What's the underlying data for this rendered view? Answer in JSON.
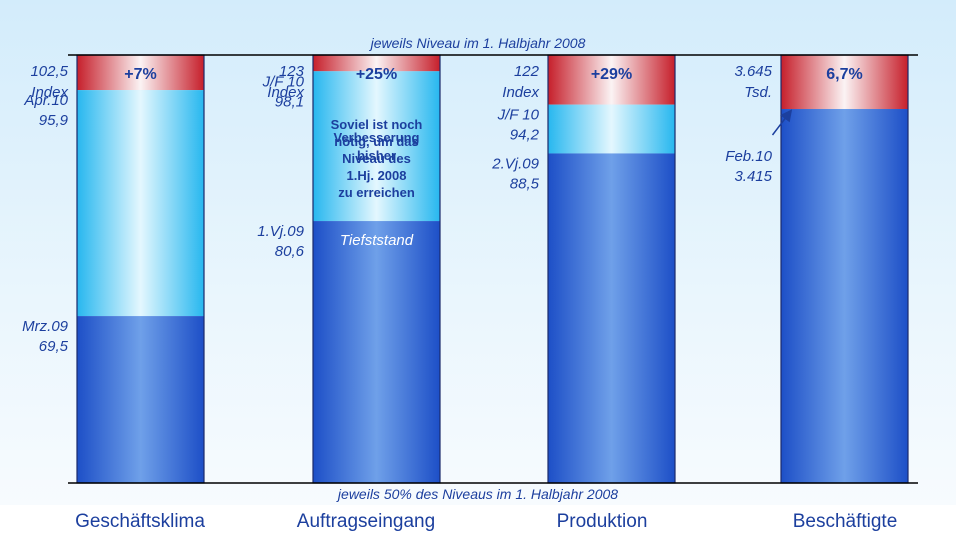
{
  "chart_data": {
    "type": "bar",
    "top_label": "jeweils Niveau im 1. Halbjahr 2008",
    "bottom_label": "jeweils 50% des Niveaus im 1. Halbjahr 2008",
    "ylim": [
      50,
      100
    ],
    "categories": [
      "Geschäftsklima",
      "Auftragseingang",
      "Produktion",
      "Beschäftigte"
    ],
    "bars": [
      {
        "category": "Geschäftsklima",
        "low": 69.5,
        "current": 95.9,
        "target": 100,
        "pct_label": "+7%",
        "target_label": [
          "102,5",
          "Index"
        ],
        "current_label": [
          "Apr.10",
          "95,9"
        ],
        "low_label": [
          "Mrz.09",
          "69,5"
        ]
      },
      {
        "category": "Auftragseingang",
        "low": 80.6,
        "current": 98.1,
        "target": 100,
        "pct_label": "+25%",
        "target_label": [
          "123",
          "Index"
        ],
        "current_label": [
          "J/F 10",
          "98,1"
        ],
        "low_label": [
          "1.Vj.09",
          "80,6"
        ],
        "red_note": [
          "Soviel ist noch",
          "nötig, um das",
          "Niveau des",
          "1.Hj. 2008",
          "zu erreichen"
        ],
        "cyan_note": [
          "Verbesserung",
          "bisher"
        ],
        "blue_note": "Tiefststand"
      },
      {
        "category": "Produktion",
        "low": 88.5,
        "current": 94.2,
        "target": 100,
        "pct_label": "+29%",
        "target_label": [
          "122",
          "Index"
        ],
        "current_label": [
          "J/F 10",
          "94,2"
        ],
        "low_label": [
          "2.Vj.09",
          "88,5"
        ]
      },
      {
        "category": "Beschäftigte",
        "low": 3415,
        "current": 3415,
        "target": 3645,
        "pct_label": "6,7%",
        "target_label": [
          "3.645",
          "Tsd."
        ],
        "current_label": [
          "Feb.10",
          "3.415"
        ]
      }
    ]
  }
}
